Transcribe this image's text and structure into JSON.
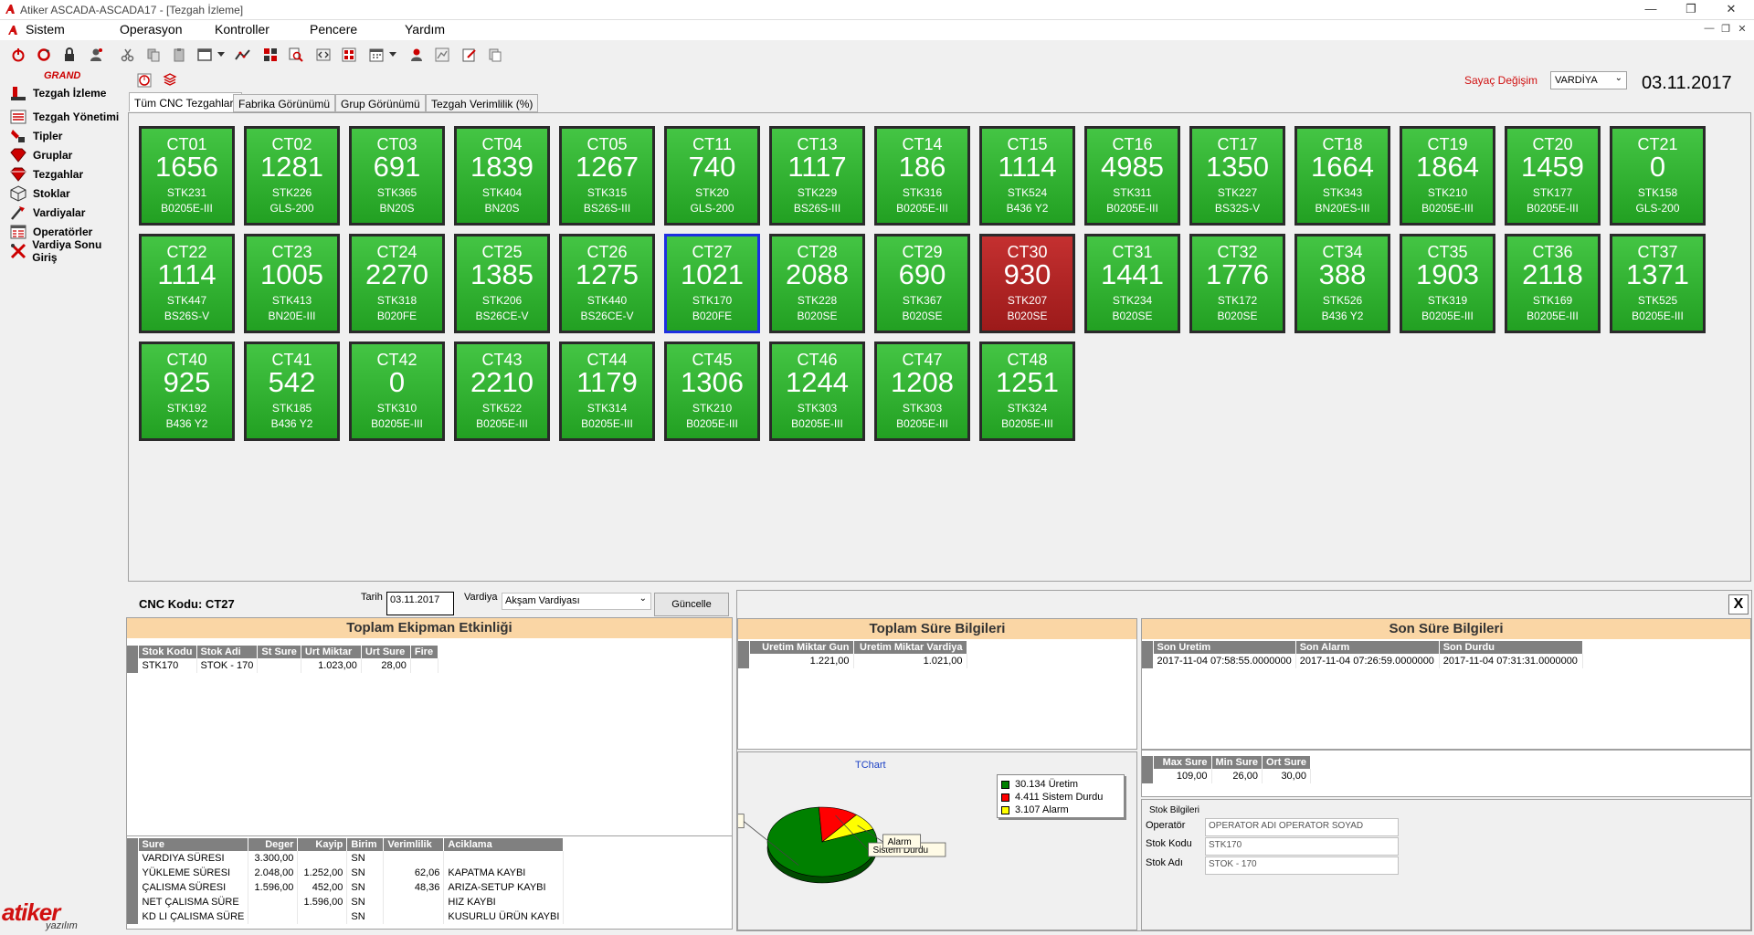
{
  "window": {
    "title": "Atiker ASCADA-ASCADA17 - [Tezgah İzleme]"
  },
  "menu": [
    "Sistem",
    "Operasyon",
    "Kontroller",
    "Pencere",
    "Yardım"
  ],
  "brand": {
    "grand": "GRAND",
    "logo_top": "atiker",
    "logo_bottom": "yazılım"
  },
  "sidebar": {
    "items": [
      {
        "label": "Tezgah İzleme",
        "icon": "machine-monitor-icon"
      },
      {
        "label": "Tezgah Yönetimi",
        "icon": "machine-management-icon"
      },
      {
        "label": "Tipler",
        "icon": "types-icon"
      },
      {
        "label": "Gruplar",
        "icon": "groups-icon"
      },
      {
        "label": "Tezgahlar",
        "icon": "machines-icon"
      },
      {
        "label": "Stoklar",
        "icon": "stocks-icon"
      },
      {
        "label": "Vardiyalar",
        "icon": "shifts-icon"
      },
      {
        "label": "Operatörler",
        "icon": "operators-icon"
      },
      {
        "label": "Vardiya Sonu Giriş",
        "icon": "shift-end-icon"
      }
    ]
  },
  "header": {
    "counter_change_label": "Sayaç Değişim",
    "shift_select": "VARDİYA",
    "date": "03.11.2017"
  },
  "tabs": [
    "Tüm CNC Tezgahları",
    "Fabrika Görünümü",
    "Grup Görünümü",
    "Tezgah Verimlilik (%)"
  ],
  "tiles": [
    {
      "code": "CT01",
      "count": "1656",
      "stock": "STK231",
      "model": "B0205E-III",
      "state": "green"
    },
    {
      "code": "CT02",
      "count": "1281",
      "stock": "STK226",
      "model": "GLS-200",
      "state": "green"
    },
    {
      "code": "CT03",
      "count": "691",
      "stock": "STK365",
      "model": "BN20S",
      "state": "green"
    },
    {
      "code": "CT04",
      "count": "1839",
      "stock": "STK404",
      "model": "BN20S",
      "state": "green"
    },
    {
      "code": "CT05",
      "count": "1267",
      "stock": "STK315",
      "model": "BS26S-III",
      "state": "green"
    },
    {
      "code": "CT11",
      "count": "740",
      "stock": "STK20",
      "model": "GLS-200",
      "state": "green"
    },
    {
      "code": "CT13",
      "count": "1117",
      "stock": "STK229",
      "model": "BS26S-III",
      "state": "green"
    },
    {
      "code": "CT14",
      "count": "186",
      "stock": "STK316",
      "model": "B0205E-III",
      "state": "green"
    },
    {
      "code": "CT15",
      "count": "1114",
      "stock": "STK524",
      "model": "B436 Y2",
      "state": "green"
    },
    {
      "code": "CT16",
      "count": "4985",
      "stock": "STK311",
      "model": "B0205E-III",
      "state": "green"
    },
    {
      "code": "CT17",
      "count": "1350",
      "stock": "STK227",
      "model": "BS32S-V",
      "state": "green"
    },
    {
      "code": "CT18",
      "count": "1664",
      "stock": "STK343",
      "model": "BN20ES-III",
      "state": "green"
    },
    {
      "code": "CT19",
      "count": "1864",
      "stock": "STK210",
      "model": "B0205E-III",
      "state": "green"
    },
    {
      "code": "CT20",
      "count": "1459",
      "stock": "STK177",
      "model": "B0205E-III",
      "state": "green"
    },
    {
      "code": "CT21",
      "count": "0",
      "stock": "STK158",
      "model": "GLS-200",
      "state": "green"
    },
    {
      "code": "CT22",
      "count": "1114",
      "stock": "STK447",
      "model": "BS26S-V",
      "state": "green"
    },
    {
      "code": "CT23",
      "count": "1005",
      "stock": "STK413",
      "model": "BN20E-III",
      "state": "green"
    },
    {
      "code": "CT24",
      "count": "2270",
      "stock": "STK318",
      "model": "B020FE",
      "state": "green"
    },
    {
      "code": "CT25",
      "count": "1385",
      "stock": "STK206",
      "model": "BS26CE-V",
      "state": "green"
    },
    {
      "code": "CT26",
      "count": "1275",
      "stock": "STK440",
      "model": "BS26CE-V",
      "state": "green"
    },
    {
      "code": "CT27",
      "count": "1021",
      "stock": "STK170",
      "model": "B020FE",
      "state": "selected"
    },
    {
      "code": "CT28",
      "count": "2088",
      "stock": "STK228",
      "model": "B020SE",
      "state": "green"
    },
    {
      "code": "CT29",
      "count": "690",
      "stock": "STK367",
      "model": "B020SE",
      "state": "green"
    },
    {
      "code": "CT30",
      "count": "930",
      "stock": "STK207",
      "model": "B020SE",
      "state": "red"
    },
    {
      "code": "CT31",
      "count": "1441",
      "stock": "STK234",
      "model": "B020SE",
      "state": "green"
    },
    {
      "code": "CT32",
      "count": "1776",
      "stock": "STK172",
      "model": "B020SE",
      "state": "green"
    },
    {
      "code": "CT34",
      "count": "388",
      "stock": "STK526",
      "model": "B436 Y2",
      "state": "green"
    },
    {
      "code": "CT35",
      "count": "1903",
      "stock": "STK319",
      "model": "B0205E-III",
      "state": "green"
    },
    {
      "code": "CT36",
      "count": "2118",
      "stock": "STK169",
      "model": "B0205E-III",
      "state": "green"
    },
    {
      "code": "CT37",
      "count": "1371",
      "stock": "STK525",
      "model": "B0205E-III",
      "state": "green"
    },
    {
      "code": "CT40",
      "count": "925",
      "stock": "STK192",
      "model": "B436 Y2",
      "state": "green"
    },
    {
      "code": "CT41",
      "count": "542",
      "stock": "STK185",
      "model": "B436 Y2",
      "state": "green"
    },
    {
      "code": "CT42",
      "count": "0",
      "stock": "STK310",
      "model": "B0205E-III",
      "state": "green"
    },
    {
      "code": "CT43",
      "count": "2210",
      "stock": "STK522",
      "model": "B0205E-III",
      "state": "green"
    },
    {
      "code": "CT44",
      "count": "1179",
      "stock": "STK314",
      "model": "B0205E-III",
      "state": "green"
    },
    {
      "code": "CT45",
      "count": "1306",
      "stock": "STK210",
      "model": "B0205E-III",
      "state": "green"
    },
    {
      "code": "CT46",
      "count": "1244",
      "stock": "STK303",
      "model": "B0205E-III",
      "state": "green"
    },
    {
      "code": "CT47",
      "count": "1208",
      "stock": "STK303",
      "model": "B0205E-III",
      "state": "green"
    },
    {
      "code": "CT48",
      "count": "1251",
      "stock": "STK324",
      "model": "B0205E-III",
      "state": "green"
    }
  ],
  "detail": {
    "cnc_label": "CNC Kodu: CT27",
    "date_label": "Tarih",
    "date_value": "03.11.2017",
    "shift_label": "Vardiya",
    "shift_value": "Akşam Vardiyası",
    "update_button": "Güncelle",
    "equipment_title": "Toplam Ekipman Etkinliği",
    "stock_table": {
      "headers": [
        "Stok Kodu",
        "Stok Adi",
        "St Sure",
        "Urt Miktar",
        "Urt Sure",
        "Fire"
      ],
      "rows": [
        [
          "STK170",
          "STOK - 170",
          "",
          "1.023,00",
          "28,00",
          ""
        ]
      ]
    },
    "sure_table": {
      "headers": [
        "Sure",
        "Deger",
        "Kayip",
        "Birim",
        "Verimlilik",
        "Aciklama"
      ],
      "rows": [
        [
          "VARDIYA SÜRESI",
          "3.300,00",
          "",
          "SN",
          "",
          ""
        ],
        [
          "YÜKLEME SÜRESI",
          "2.048,00",
          "1.252,00",
          "SN",
          "62,06",
          "KAPATMA KAYBI"
        ],
        [
          "ÇALISMA SÜRESI",
          "1.596,00",
          "452,00",
          "SN",
          "48,36",
          "ARIZA-SETUP KAYBI"
        ],
        [
          "NET ÇALISMA SÜRE",
          "",
          "1.596,00",
          "SN",
          "",
          "HIZ KAYBI"
        ],
        [
          "KD LI ÇALISMA SÜRE",
          "",
          "",
          "SN",
          "",
          "KUSURLU ÜRÜN KAYBI"
        ]
      ]
    }
  },
  "total_time": {
    "title": "Toplam Süre Bilgileri",
    "headers": [
      "Uretim Miktar Gun",
      "Uretim Miktar Vardiya"
    ],
    "row": [
      "1.221,00",
      "1.021,00"
    ]
  },
  "last_time": {
    "title": "Son Süre Bilgileri",
    "headers": [
      "Son Uretim",
      "Son Alarm",
      "Son Durdu"
    ],
    "row": [
      "2017-11-04 07:58:55.0000000",
      "2017-11-04 07:26:59.0000000",
      "2017-11-04 07:31:31.0000000"
    ],
    "stats_headers": [
      "Max Sure",
      "Min Sure",
      "Ort Sure"
    ],
    "stats_row": [
      "109,00",
      "26,00",
      "30,00"
    ],
    "close_button": "X"
  },
  "stock_info": {
    "title": "Stok Bilgileri",
    "operator_label": "Operatör",
    "operator_value": "OPERATOR ADI OPERATOR SOYAD",
    "code_label": "Stok Kodu",
    "code_value": "STK170",
    "name_label": "Stok Adı",
    "name_value": "STOK - 170"
  },
  "chart_data": {
    "type": "pie",
    "title": "TChart",
    "categories": [
      "Üretim",
      "Sistem Durdu",
      "Alarm"
    ],
    "values": [
      30.134,
      4.411,
      3.107
    ],
    "legend": [
      "30.134 Üretim",
      "4.411 Sistem Durdu",
      "3.107 Alarm"
    ],
    "colors": [
      "#008000",
      "#ff0000",
      "#ffff00"
    ],
    "legend_position": "right"
  }
}
